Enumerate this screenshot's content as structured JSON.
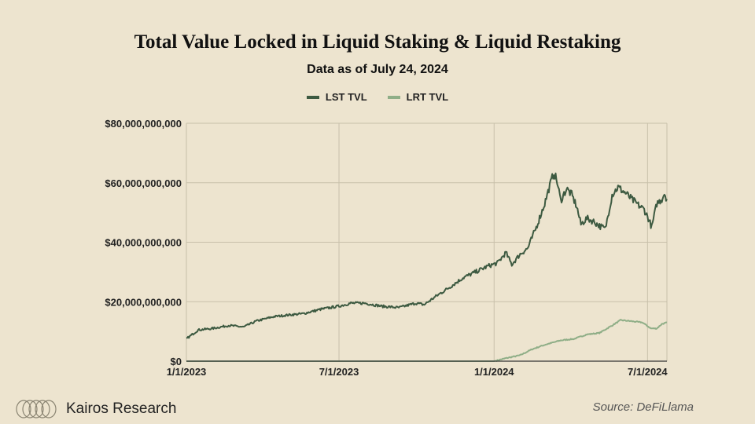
{
  "header": {
    "title": "Total Value Locked in Liquid Staking & Liquid Restaking",
    "subtitle": "Data as of July 24, 2024"
  },
  "footer": {
    "brand": "Kairos Research",
    "source": "Source: DeFiLlama"
  },
  "colors": {
    "background": "#ede4cf",
    "grid": "#c8c0aa",
    "lst": "#3d5a41",
    "lrt": "#8fae87"
  },
  "chart_data": {
    "type": "line",
    "title": "Total Value Locked in Liquid Staking & Liquid Restaking",
    "subtitle": "Data as of July 24, 2024",
    "xlabel": "",
    "ylabel": "",
    "ylim": [
      0,
      80000000000
    ],
    "y_ticks": [
      0,
      20000000000,
      40000000000,
      60000000000,
      80000000000
    ],
    "y_tick_labels": [
      "$0",
      "$20,000,000,000",
      "$40,000,000,000",
      "$60,000,000,000",
      "$80,000,000,000"
    ],
    "x_range": [
      "2023-01-01",
      "2024-07-24"
    ],
    "x_ticks": [
      "2023-01-01",
      "2023-07-01",
      "2024-01-01",
      "2024-07-01"
    ],
    "x_tick_labels": [
      "1/1/2023",
      "7/1/2023",
      "1/1/2024",
      "7/1/2024"
    ],
    "grid": true,
    "legend_position": "top-center",
    "series": [
      {
        "name": "LST TVL",
        "color": "#3d5a41",
        "points": [
          [
            "2023-01-01",
            7.5
          ],
          [
            "2023-01-15",
            10.5
          ],
          [
            "2023-02-01",
            11
          ],
          [
            "2023-02-20",
            12
          ],
          [
            "2023-03-10",
            11.5
          ],
          [
            "2023-03-25",
            13.5
          ],
          [
            "2023-04-15",
            15
          ],
          [
            "2023-05-01",
            15.5
          ],
          [
            "2023-05-20",
            16
          ],
          [
            "2023-06-10",
            17.5
          ],
          [
            "2023-07-01",
            18.5
          ],
          [
            "2023-07-15",
            19.5
          ],
          [
            "2023-08-01",
            19.5
          ],
          [
            "2023-08-20",
            18.5
          ],
          [
            "2023-09-10",
            18
          ],
          [
            "2023-09-30",
            19.5
          ],
          [
            "2023-10-10",
            19
          ],
          [
            "2023-10-25",
            22
          ],
          [
            "2023-11-10",
            25
          ],
          [
            "2023-11-25",
            28
          ],
          [
            "2023-12-10",
            30
          ],
          [
            "2023-12-25",
            32
          ],
          [
            "2024-01-05",
            33
          ],
          [
            "2024-01-15",
            36.5
          ],
          [
            "2024-01-22",
            32.5
          ],
          [
            "2024-02-01",
            36
          ],
          [
            "2024-02-10",
            38
          ],
          [
            "2024-02-20",
            45
          ],
          [
            "2024-03-01",
            53
          ],
          [
            "2024-03-06",
            58
          ],
          [
            "2024-03-12",
            63.5
          ],
          [
            "2024-03-16",
            60
          ],
          [
            "2024-03-20",
            54
          ],
          [
            "2024-03-27",
            58
          ],
          [
            "2024-04-02",
            56
          ],
          [
            "2024-04-08",
            52
          ],
          [
            "2024-04-13",
            46
          ],
          [
            "2024-04-20",
            48
          ],
          [
            "2024-04-28",
            47
          ],
          [
            "2024-05-05",
            45.5
          ],
          [
            "2024-05-12",
            44.5
          ],
          [
            "2024-05-20",
            56
          ],
          [
            "2024-05-27",
            58.5
          ],
          [
            "2024-06-05",
            56.5
          ],
          [
            "2024-06-12",
            54.5
          ],
          [
            "2024-06-20",
            52.5
          ],
          [
            "2024-06-27",
            51
          ],
          [
            "2024-07-02",
            48
          ],
          [
            "2024-07-06",
            45
          ],
          [
            "2024-07-12",
            53
          ],
          [
            "2024-07-18",
            54.5
          ],
          [
            "2024-07-21",
            56.5
          ],
          [
            "2024-07-24",
            54.5
          ]
        ]
      },
      {
        "name": "LRT TVL",
        "color": "#8fae87",
        "points": [
          [
            "2023-01-01",
            0
          ],
          [
            "2024-01-01",
            0
          ],
          [
            "2024-01-15",
            1
          ],
          [
            "2024-02-01",
            2
          ],
          [
            "2024-02-15",
            4
          ],
          [
            "2024-03-01",
            5.5
          ],
          [
            "2024-03-20",
            7
          ],
          [
            "2024-04-05",
            7.5
          ],
          [
            "2024-04-20",
            9
          ],
          [
            "2024-05-05",
            9.5
          ],
          [
            "2024-05-20",
            12
          ],
          [
            "2024-05-30",
            13.8
          ],
          [
            "2024-06-10",
            13.5
          ],
          [
            "2024-06-25",
            13
          ],
          [
            "2024-07-05",
            11
          ],
          [
            "2024-07-12",
            11
          ],
          [
            "2024-07-18",
            12.5
          ],
          [
            "2024-07-24",
            13
          ]
        ]
      }
    ],
    "units": "billions USD"
  }
}
